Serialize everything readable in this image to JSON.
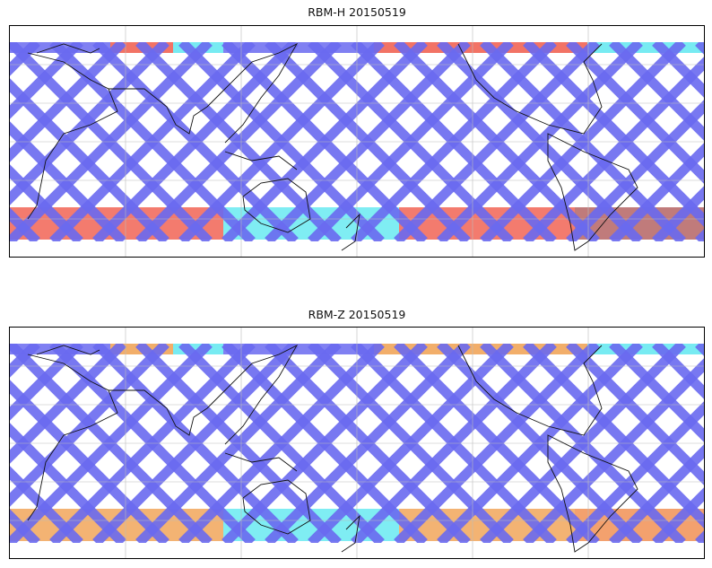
{
  "panels": [
    {
      "id": "top",
      "title": "RBM-H 20150519",
      "palette": {
        "low": "#6a6af0",
        "mid": "#5fe8f0",
        "high": "#f05a4a",
        "max": "#b05a5a"
      }
    },
    {
      "id": "bottom",
      "title": "RBM-Z 20150519",
      "palette": {
        "low": "#6a6af0",
        "mid": "#5fe8f0",
        "high": "#f0a050",
        "max": "#f08a4a"
      }
    }
  ],
  "map": {
    "projection": "cylindrical",
    "gridlines": true,
    "coastlines": true,
    "colormap": "jet"
  }
}
